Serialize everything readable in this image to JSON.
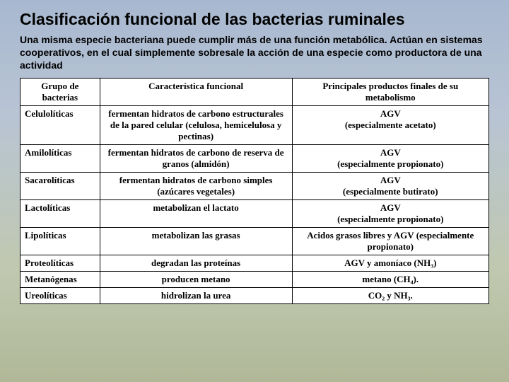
{
  "title": "Clasificación funcional de las bacterias ruminales",
  "subtitle": "Una misma especie bacteriana puede cumplir más de una función metabólica. Actúan en sistemas cooperativos, en el cual simplemente sobresale la acción de una especie como productora de una actividad",
  "table": {
    "headers": [
      "Grupo de bacterias",
      "Característica funcional",
      "Principales productos finales de su metabolismo"
    ],
    "rows": [
      [
        "Celulolíticas",
        "fermentan hidratos de carbono estructurales de la pared celular (celulosa, hemicelulosa y pectinas)",
        "AGV\n(especialmente acetato)"
      ],
      [
        "Amilolíticas",
        "fermentan hidratos de carbono de reserva de granos (almidón)",
        "AGV\n(especialmente propionato)"
      ],
      [
        "Sacarolíticas",
        "fermentan hidratos de carbono simples (azúcares vegetales)",
        "AGV\n(especialmente butirato)"
      ],
      [
        "Lactolíticas",
        "metabolizan el lactato",
        "AGV\n(especialmente propionato)"
      ],
      [
        "Lipolíticas",
        "metabolizan las grasas",
        "Acidos grasos libres y AGV (especialmente propionato)"
      ],
      [
        "Proteolíticas",
        "degradan las proteínas",
        "AGV y amoníaco (NH₃)"
      ],
      [
        "Metanógenas",
        "producen metano",
        "metano (CH₄)."
      ],
      [
        "Ureolíticas",
        "hidrolizan la urea",
        "CO₂ y NH₃."
      ]
    ],
    "col_widths": [
      "17%",
      "41%",
      "42%"
    ],
    "border_color": "#000000",
    "background": "#ffffff",
    "header_fontsize": 13,
    "cell_fontsize": 13,
    "font_family": "Times New Roman"
  },
  "background_gradient": [
    "#a8b8d0",
    "#b8c4d4",
    "#c0c8b0",
    "#b0b898"
  ]
}
